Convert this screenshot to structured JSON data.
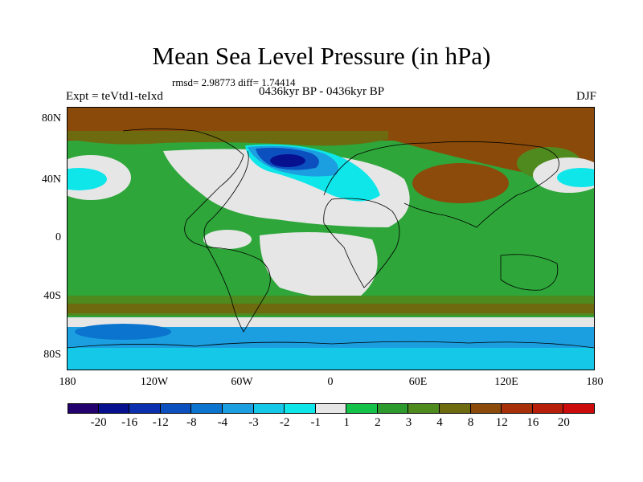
{
  "title": "Mean Sea Level Pressure (in hPa)",
  "stats_text": "rmsd= 2.98773 diff= 1.74414",
  "experiment": "Expt = teVtd1-teIxd",
  "period": "0436kyr BP - 0436kyr BP",
  "season": "DJF",
  "y_ticks": [
    "80N",
    "40N",
    "0",
    "40S",
    "80S"
  ],
  "x_ticks": [
    "180",
    "120W",
    "60W",
    "0",
    "60E",
    "120E",
    "180"
  ],
  "colorbar": {
    "labels": [
      "-20",
      "-16",
      "-12",
      "-8",
      "-4",
      "-3",
      "-2",
      "-1",
      "1",
      "2",
      "3",
      "4",
      "8",
      "12",
      "16",
      "20"
    ],
    "colors": [
      "#24006e",
      "#07108e",
      "#0b2fae",
      "#0c50c0",
      "#0a74cf",
      "#1b9fe0",
      "#16c8e8",
      "#0fe6ea",
      "#e6e6e6",
      "#14c24a",
      "#2d9a2d",
      "#4f8a1e",
      "#6e6a0f",
      "#8c4b0a",
      "#a83009",
      "#b81f0a",
      "#cc0c0c"
    ]
  },
  "colors": {
    "land_outline": "#000000",
    "background_green": "#2ea63a",
    "neutral": "#e6e6e6",
    "high": "#8a4b0a",
    "low": "#0a5fc8"
  }
}
